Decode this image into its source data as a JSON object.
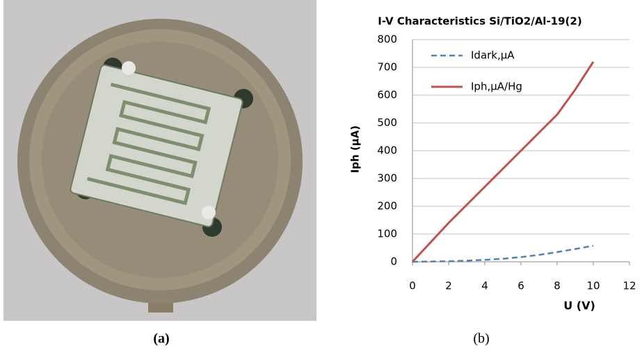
{
  "chart_data": {
    "type": "line",
    "title": "I-V Characteristics  Si/TiO2/Al-19(2)",
    "x_label": "U (V)",
    "y_label": "Iph (μA)",
    "x": [
      0,
      1,
      2,
      3,
      4,
      5,
      6,
      7,
      8,
      9,
      10
    ],
    "series": [
      {
        "name": "Idark,μA",
        "color": "#4f81bd",
        "line_style": "dashed",
        "values": [
          0,
          1,
          2,
          4,
          7,
          11,
          17,
          25,
          35,
          46,
          58
        ]
      },
      {
        "name": "Iph,μA/Hg",
        "color": "#c0504d",
        "line_style": "solid",
        "values": [
          0,
          70,
          140,
          205,
          270,
          335,
          400,
          465,
          530,
          620,
          720
        ]
      }
    ],
    "xlim": [
      0,
      12
    ],
    "xticks": [
      0,
      2,
      4,
      6,
      8,
      10,
      12
    ],
    "ylim": [
      0,
      800
    ],
    "yticks": [
      0,
      100,
      200,
      300,
      400,
      500,
      600,
      700,
      800
    ],
    "grid": true,
    "legend": "upper-left"
  },
  "captions": [
    "(a)",
    "(b)"
  ]
}
